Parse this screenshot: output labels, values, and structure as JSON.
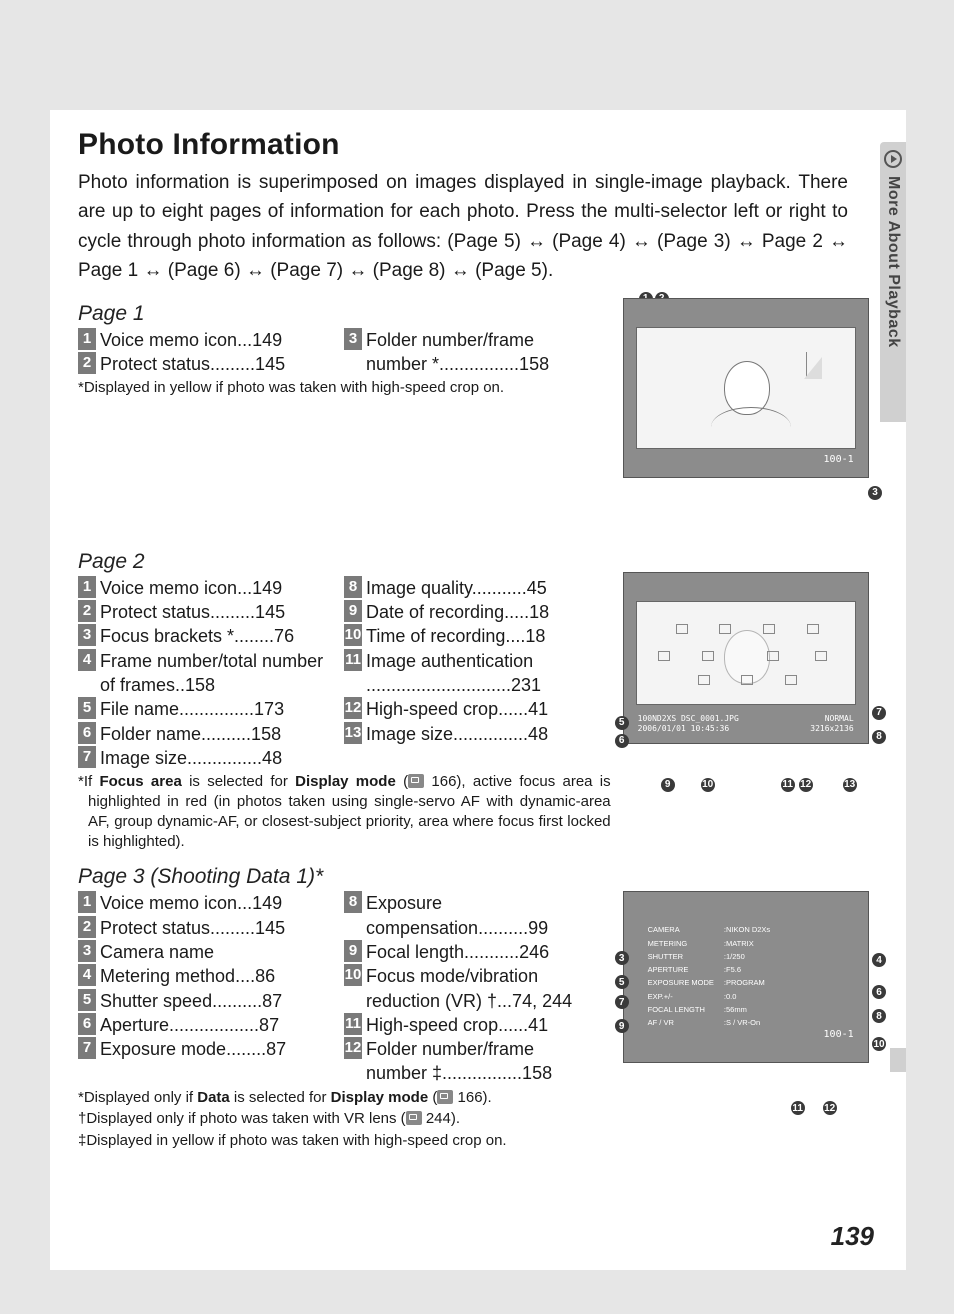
{
  "side_tab": "More About Playback",
  "heading": "Photo Information",
  "intro_text": "Photo information is superimposed on images displayed in single-image playback.  There are up to eight pages of information for each photo.  Press the multi-selector left or right to cycle through photo information as follows: (Page 5) ↔ (Page 4) ↔ (Page 3) ↔ Page 2 ↔ Page 1 ↔ (Page 6) ↔ (Page 7) ↔ (Page 8) ↔ (Page 5).",
  "page_number": "139",
  "sections": {
    "p1": {
      "title": "Page 1",
      "left": [
        {
          "n": "1",
          "t": "Voice memo icon",
          "d": "...",
          "p": "149"
        },
        {
          "n": "2",
          "t": "Protect status",
          "d": ".........",
          "p": "145"
        }
      ],
      "right": [
        {
          "n": "3",
          "t": "Folder number/frame number *",
          "d": "................",
          "p": "158"
        }
      ],
      "footnotes": [
        {
          "sym": "*",
          "text": "Displayed in yellow if photo was taken with high-speed crop on."
        }
      ]
    },
    "p2": {
      "title": "Page 2",
      "left": [
        {
          "n": "1",
          "t": "Voice memo icon",
          "d": "...",
          "p": "149"
        },
        {
          "n": "2",
          "t": "Protect status",
          "d": ".........",
          "p": "145"
        },
        {
          "n": "3",
          "t": "Focus brackets *",
          "d": "........",
          "p": "76"
        },
        {
          "n": "4",
          "t": "Frame number/total number of frames",
          "d": "..",
          "p": "158"
        },
        {
          "n": "5",
          "t": "File name",
          "d": "...............",
          "p": "173"
        },
        {
          "n": "6",
          "t": "Folder name",
          "d": "..........",
          "p": "158"
        },
        {
          "n": "7",
          "t": "Image size",
          "d": "...............",
          "p": "48"
        }
      ],
      "right": [
        {
          "n": "8",
          "t": "Image quality",
          "d": "...........",
          "p": "45"
        },
        {
          "n": "9",
          "t": "Date of recording",
          "d": ".....",
          "p": "18"
        },
        {
          "n": "10",
          "t": "Time of recording",
          "d": "....",
          "p": "18"
        },
        {
          "n": "11",
          "t": "Image authentication ",
          "d": ".............................",
          "p": "231"
        },
        {
          "n": "12",
          "t": "High-speed crop",
          "d": "......",
          "p": "41"
        },
        {
          "n": "13",
          "t": "Image size",
          "d": "...............",
          "p": "48"
        }
      ],
      "footnotes": [
        {
          "sym": "*",
          "html": "If <b>Focus area</b> is selected for <b>Display mode</b> (<span class='ref-icon' data-name='manual-ref-icon'></span> 166), active focus area is highlighted in red (in photos taken using single-servo AF with dynamic-area AF, group dynamic-AF, or closest-subject priority, area where focus first locked is highlighted)."
        }
      ]
    },
    "p3": {
      "title": "Page 3 (Shooting Data 1)*",
      "left": [
        {
          "n": "1",
          "t": "Voice memo icon",
          "d": "...",
          "p": "149"
        },
        {
          "n": "2",
          "t": "Protect status",
          "d": ".........",
          "p": "145"
        },
        {
          "n": "3",
          "t": "Camera name",
          "d": "",
          "p": ""
        },
        {
          "n": "4",
          "t": "Metering method",
          "d": "....",
          "p": "86"
        },
        {
          "n": "5",
          "t": "Shutter speed",
          "d": "..........",
          "p": "87"
        },
        {
          "n": "6",
          "t": "Aperture",
          "d": "..................",
          "p": "87"
        },
        {
          "n": "7",
          "t": "Exposure mode",
          "d": "........",
          "p": "87"
        }
      ],
      "right": [
        {
          "n": "8",
          "t": "Exposure compensation",
          "d": "..........",
          "p": "99"
        },
        {
          "n": "9",
          "t": "Focal length",
          "d": "...........",
          "p": "246"
        },
        {
          "n": "10",
          "t": "Focus mode/vibration reduction (VR) †",
          "d": "...",
          "p": "74, 244"
        },
        {
          "n": "11",
          "t": "High-speed crop",
          "d": "......",
          "p": "41"
        },
        {
          "n": "12",
          "t": "Folder number/frame number ‡",
          "d": "................",
          "p": "158"
        }
      ],
      "footnotes": [
        {
          "sym": "*",
          "html": "Displayed only if <b>Data</b> is selected for <b>Display mode</b> (<span class='ref-icon' data-name='manual-ref-icon'></span> 166)."
        },
        {
          "sym": "†",
          "html": "Displayed only if photo was taken with VR lens (<span class='ref-icon' data-name='manual-ref-icon'></span> 244)."
        },
        {
          "sym": "‡",
          "text": "Displayed in yellow if photo was taken with high-speed crop on."
        }
      ]
    }
  },
  "diag2_bottom1": "100ND2XS DSC_0001.JPG",
  "diag2_bottom2": "2006/01/01 10:45:36",
  "diag2_right1": "NORMAL",
  "diag2_right2": "3216x2136",
  "diag1_label": "100-1",
  "diag3_label": "100-1",
  "diag3_rows": [
    [
      "CAMERA",
      ":NIKON D2Xs"
    ],
    [
      "METERING",
      ":MATRIX"
    ],
    [
      "SHUTTER",
      ":1/250"
    ],
    [
      "APERTURE",
      ":F5.6"
    ],
    [
      "EXPOSURE MODE",
      ":PROGRAM"
    ],
    [
      "EXP.+/-",
      ":0.0"
    ],
    [
      "FOCAL LENGTH",
      ":56mm"
    ],
    [
      "AF / VR",
      ":S / VR-On"
    ]
  ]
}
